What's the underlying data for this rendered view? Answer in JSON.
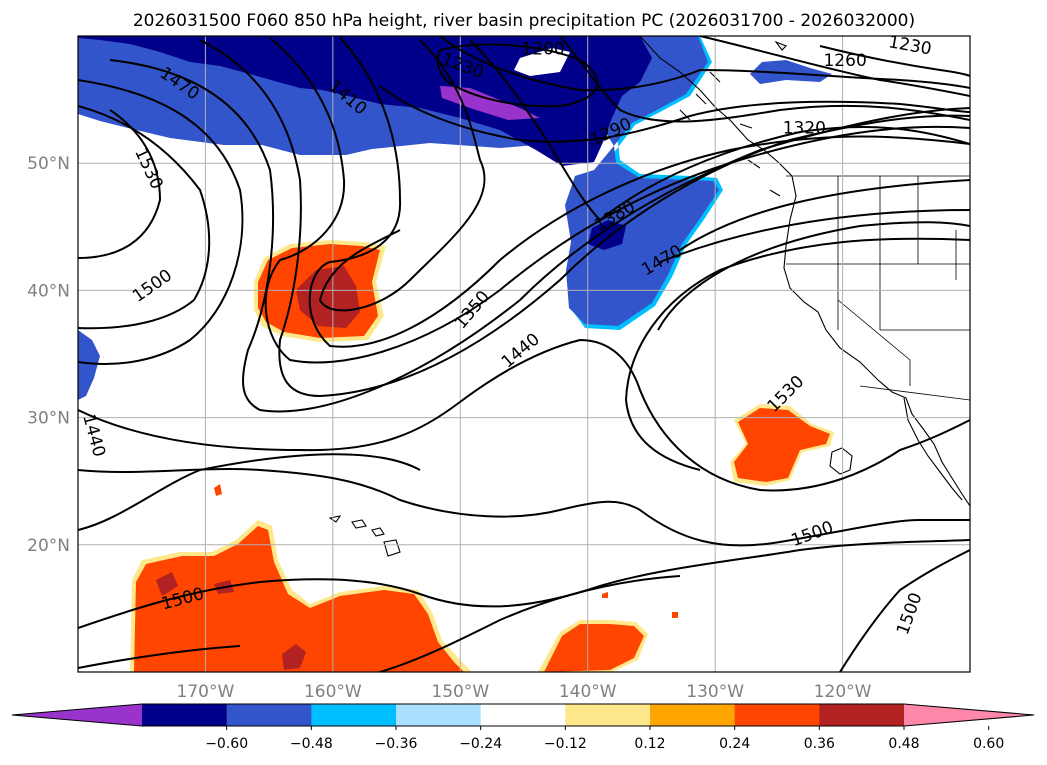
{
  "title": "2026031500 F060 850 hPa height, river basin precipitation PC (2026031700 - 2026032000)",
  "map": {
    "lon_range": [
      -180,
      -110
    ],
    "lat_range": [
      10,
      60
    ],
    "lon_ticks": [
      {
        "lon": -170,
        "label": "170°W"
      },
      {
        "lon": -160,
        "label": "160°W"
      },
      {
        "lon": -150,
        "label": "150°W"
      },
      {
        "lon": -140,
        "label": "140°W"
      },
      {
        "lon": -130,
        "label": "130°W"
      },
      {
        "lon": -120,
        "label": "120°W"
      }
    ],
    "lat_ticks": [
      {
        "lat": 50,
        "label": "50°N"
      },
      {
        "lat": 40,
        "label": "40°N"
      },
      {
        "lat": 30,
        "label": "30°N"
      },
      {
        "lat": 20,
        "label": "20°N"
      }
    ],
    "contour_interval_m": 30,
    "contour_labels": [
      {
        "text": "1470",
        "lon": -172,
        "lat": 56.3,
        "angle": 35
      },
      {
        "text": "1410",
        "lon": -158.8,
        "lat": 55.2,
        "angle": 40
      },
      {
        "text": "1230",
        "lon": -149.8,
        "lat": 57.7,
        "angle": 20
      },
      {
        "text": "1200",
        "lon": -143.5,
        "lat": 59.0,
        "angle": 0
      },
      {
        "text": "1290",
        "lon": -138.2,
        "lat": 52.5,
        "angle": -25
      },
      {
        "text": "1260",
        "lon": -119.8,
        "lat": 58.1,
        "angle": 0
      },
      {
        "text": "1230",
        "lon": -114.7,
        "lat": 59.3,
        "angle": 10
      },
      {
        "text": "1320",
        "lon": -123.0,
        "lat": 52.8,
        "angle": 0
      },
      {
        "text": "1530",
        "lon": -174.4,
        "lat": 49.6,
        "angle": 65
      },
      {
        "text": "1500",
        "lon": -174.2,
        "lat": 40.4,
        "angle": -35
      },
      {
        "text": "1380",
        "lon": -137.9,
        "lat": 45.9,
        "angle": -30
      },
      {
        "text": "1470",
        "lon": -134.2,
        "lat": 42.4,
        "angle": -30
      },
      {
        "text": "1350",
        "lon": -149.1,
        "lat": 38.5,
        "angle": -50
      },
      {
        "text": "1440",
        "lon": -145.3,
        "lat": 35.3,
        "angle": -40
      },
      {
        "text": "1530",
        "lon": -124.5,
        "lat": 31.9,
        "angle": -45
      },
      {
        "text": "1440",
        "lon": -178.7,
        "lat": 28.6,
        "angle": 75
      },
      {
        "text": "1500",
        "lon": -122.4,
        "lat": 20.9,
        "angle": -20
      },
      {
        "text": "1500",
        "lon": -171.8,
        "lat": 15.8,
        "angle": -15
      },
      {
        "text": "1500",
        "lon": -114.8,
        "lat": 14.6,
        "angle": -70
      }
    ]
  },
  "colorbar": {
    "levels": [
      -0.6,
      -0.48,
      -0.36,
      -0.24,
      -0.12,
      0.12,
      0.24,
      0.36,
      0.48,
      0.6
    ],
    "tick_labels": [
      "−0.60",
      "−0.48",
      "−0.36",
      "−0.24",
      "−0.12",
      "0.12",
      "0.24",
      "0.36",
      "0.48",
      "0.60"
    ],
    "colors": [
      "#9933cc",
      "#00008b",
      "#3355cc",
      "#00bfff",
      "#aadfff",
      "#ffffff",
      "#ffe88c",
      "#ffa500",
      "#ff4500",
      "#b22222",
      "#ff88aa"
    ],
    "extend": "both"
  },
  "colors": {
    "contour": "#000000",
    "gridline": "#b0b0b0",
    "axis_text": "#808080"
  }
}
